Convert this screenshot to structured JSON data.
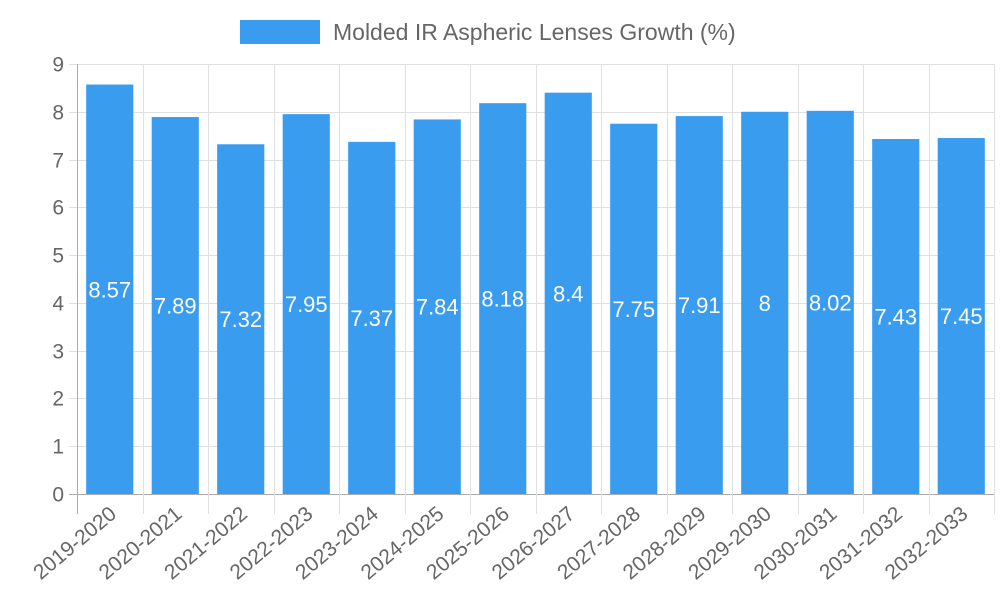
{
  "legend": {
    "label": "Molded IR Aspheric Lenses Growth (%)",
    "color": "#3a9cef"
  },
  "chart_data": {
    "type": "bar",
    "title": "",
    "xlabel": "",
    "ylabel": "",
    "ylim": [
      0,
      9
    ],
    "yticks": [
      0,
      1,
      2,
      3,
      4,
      5,
      6,
      7,
      8,
      9
    ],
    "grid": true,
    "legend_position": "top",
    "categories": [
      "2019-2020",
      "2020-2021",
      "2021-2022",
      "2022-2023",
      "2023-2024",
      "2024-2025",
      "2025-2026",
      "2026-2027",
      "2027-2028",
      "2028-2029",
      "2029-2030",
      "2030-2031",
      "2031-2032",
      "2032-2033"
    ],
    "series": [
      {
        "name": "Molded IR Aspheric Lenses Growth (%)",
        "color": "#3a9cef",
        "values": [
          8.57,
          7.89,
          7.32,
          7.95,
          7.37,
          7.84,
          8.18,
          8.4,
          7.75,
          7.91,
          8,
          8.02,
          7.43,
          7.45
        ]
      }
    ]
  }
}
